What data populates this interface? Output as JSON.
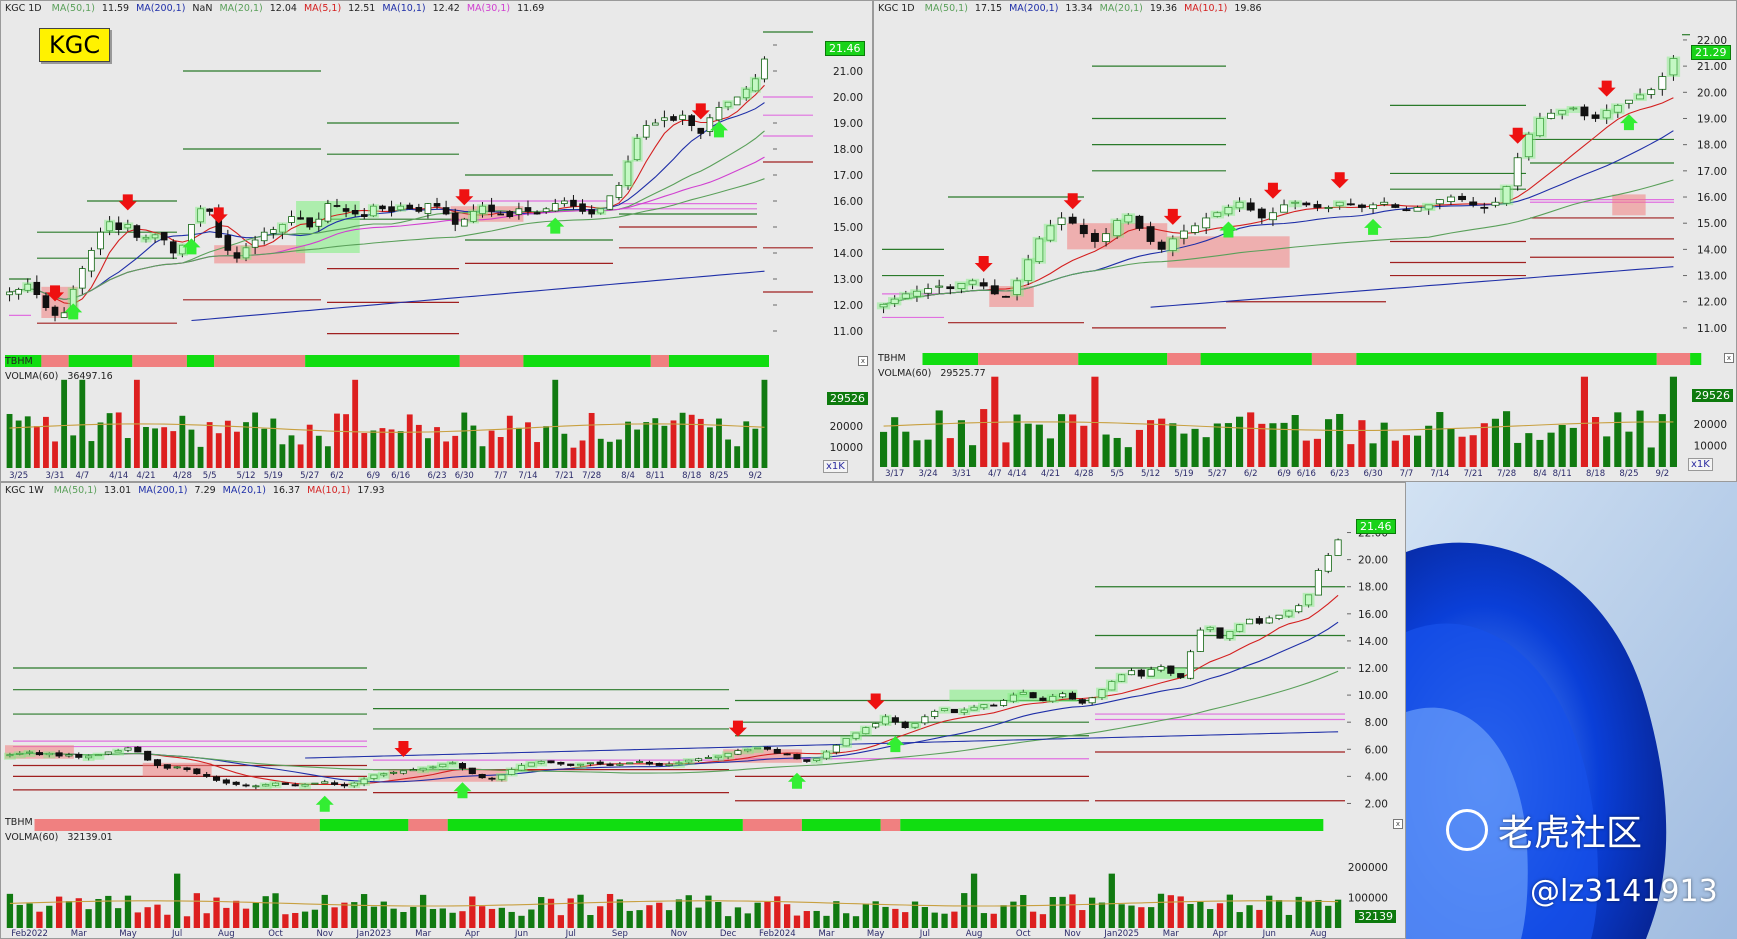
{
  "panels": {
    "top_left": {
      "symbol": "KGC 1D",
      "label_badge": "KGC",
      "ma": [
        {
          "label": "MA(50,1)",
          "value": "11.59",
          "color": "#5aa05a"
        },
        {
          "label": "MA(200,1)",
          "value": "NaN",
          "color": "#1f2fa8"
        },
        {
          "label": "MA(20,1)",
          "value": "12.04",
          "color": "#5aa05a"
        },
        {
          "label": "MA(5,1)",
          "value": "12.51",
          "color": "#d42020"
        },
        {
          "label": "MA(10,1)",
          "value": "12.42",
          "color": "#1f2fa8"
        },
        {
          "label": "MA(30,1)",
          "value": "11.69",
          "color": "#d040d0"
        }
      ],
      "price_label": "21.46",
      "tbhm": "TBHM",
      "volma": "VOLMA(60)",
      "volma_value": "36497.16",
      "vol_badge": "29526",
      "x1k": "x1K"
    },
    "top_right": {
      "symbol": "KGC 1D",
      "ma": [
        {
          "label": "MA(50,1)",
          "value": "17.15",
          "color": "#5aa05a"
        },
        {
          "label": "MA(200,1)",
          "value": "13.34",
          "color": "#1f2fa8"
        },
        {
          "label": "MA(20,1)",
          "value": "19.36",
          "color": "#5aa05a"
        },
        {
          "label": "MA(10,1)",
          "value": "19.86",
          "color": "#d42020"
        }
      ],
      "price_label": "21.29",
      "tbhm": "TBHM",
      "volma": "VOLMA(60)",
      "volma_value": "29525.77",
      "vol_badge": "29526",
      "x1k": "x1K"
    },
    "bottom": {
      "symbol": "KGC 1W",
      "ma": [
        {
          "label": "MA(50,1)",
          "value": "13.01",
          "color": "#5aa05a"
        },
        {
          "label": "MA(200,1)",
          "value": "7.29",
          "color": "#1f2fa8"
        },
        {
          "label": "MA(20,1)",
          "value": "16.37",
          "color": "#1f2fa8"
        },
        {
          "label": "MA(10,1)",
          "value": "17.93",
          "color": "#d42020"
        }
      ],
      "price_label": "21.46",
      "tbhm": "TBHM",
      "volma": "VOLMA(60)",
      "volma_value": "32139.01",
      "vol_badge": "32139"
    }
  },
  "watermark": {
    "brand": "老虎社区",
    "handle": "@lz3141913"
  },
  "colors": {
    "up": "#19c119",
    "down": "#e02020",
    "background": "#e9e9e9",
    "tbhm_green": "#11dd11",
    "tbhm_red": "#f08080"
  },
  "chart_data": [
    {
      "id": "top_left",
      "type": "candlestick",
      "timeframe": "1D",
      "ylim": [
        10.5,
        23.0
      ],
      "yticks": [
        11,
        12,
        13,
        14,
        15,
        16,
        17,
        18,
        19,
        20,
        21,
        22
      ],
      "ytick_labels": [
        "11.00",
        "12.00",
        "13.00",
        "14.00",
        "15.00",
        "16.00",
        "17.00",
        "18.00",
        "19.00",
        "20.00",
        "21.00",
        "22.00"
      ],
      "xtick_labels": [
        "3/25",
        "3/31",
        "4/7",
        "4/14",
        "4/21",
        "4/28",
        "5/5",
        "5/12",
        "5/19",
        "5/27",
        "6/2",
        "6/9",
        "6/16",
        "6/23",
        "6/30",
        "7/7",
        "7/14",
        "7/21",
        "7/28",
        "8/4",
        "8/11",
        "8/18",
        "8/25",
        "9/2"
      ],
      "close": [
        12.5,
        12.6,
        12.8,
        12.4,
        11.9,
        11.6,
        11.7,
        12.6,
        13.4,
        14.1,
        14.8,
        15.2,
        14.9,
        15.1,
        14.6,
        14.6,
        14.7,
        14.5,
        14.0,
        14.3,
        15.1,
        15.7,
        15.6,
        14.6,
        14.1,
        13.8,
        14.2,
        14.5,
        14.8,
        14.9,
        15.1,
        15.4,
        15.3,
        15.0,
        15.3,
        15.9,
        15.8,
        15.6,
        15.5,
        15.4,
        15.8,
        15.7,
        15.6,
        15.8,
        15.7,
        15.6,
        15.9,
        15.8,
        15.5,
        15.1,
        15.3,
        15.6,
        15.8,
        15.6,
        15.5,
        15.4,
        15.7,
        15.6,
        15.5,
        15.7,
        15.9,
        16.0,
        15.8,
        15.6,
        15.5,
        15.7,
        16.2,
        16.6,
        17.5,
        18.4,
        18.9,
        19.0,
        19.2,
        19.1,
        19.3,
        18.9,
        18.6,
        19.2,
        19.6,
        19.8,
        20.0,
        20.3,
        20.7,
        21.46
      ],
      "ma_series": [
        "MA(5,1)",
        "MA(10,1)",
        "MA(20,1)",
        "MA(30,1)",
        "MA(50,1)",
        "MA(200,1)"
      ],
      "volume_ylim": [
        0,
        40000
      ],
      "volume_yticks": [
        "10000",
        "20000"
      ]
    },
    {
      "id": "top_right",
      "type": "candlestick",
      "timeframe": "1D",
      "ylim": [
        10.5,
        22.8
      ],
      "yticks": [
        11,
        12,
        13,
        14,
        15,
        16,
        17,
        18,
        19,
        20,
        21,
        22
      ],
      "ytick_labels": [
        "11.00",
        "12.00",
        "13.00",
        "14.00",
        "15.00",
        "16.00",
        "17.00",
        "18.00",
        "19.00",
        "20.00",
        "21.00",
        "22.00"
      ],
      "xtick_labels": [
        "3/17",
        "3/24",
        "3/31",
        "4/7",
        "4/14",
        "4/21",
        "4/28",
        "5/5",
        "5/12",
        "5/19",
        "5/27",
        "6/2",
        "6/9",
        "6/16",
        "6/23",
        "6/30",
        "7/7",
        "7/14",
        "7/21",
        "7/28",
        "8/4",
        "8/11",
        "8/18",
        "8/25",
        "9/2"
      ],
      "close": [
        11.9,
        12.1,
        12.3,
        12.4,
        12.5,
        12.6,
        12.5,
        12.7,
        12.8,
        12.6,
        12.3,
        12.2,
        12.8,
        13.6,
        14.4,
        14.9,
        15.2,
        15.0,
        14.6,
        14.3,
        14.6,
        15.1,
        15.3,
        14.8,
        14.3,
        14.0,
        14.4,
        14.7,
        14.9,
        15.2,
        15.4,
        15.6,
        15.8,
        15.5,
        15.2,
        15.4,
        15.7,
        15.8,
        15.7,
        15.6,
        15.6,
        15.8,
        15.7,
        15.6,
        15.7,
        15.8,
        15.6,
        15.5,
        15.6,
        15.7,
        15.9,
        16.0,
        15.9,
        15.7,
        15.6,
        15.8,
        16.4,
        17.5,
        18.4,
        19.0,
        19.2,
        19.3,
        19.4,
        19.1,
        19.0,
        19.3,
        19.5,
        19.7,
        19.9,
        20.1,
        20.6,
        21.29
      ],
      "ma_series": [
        "MA(10,1)",
        "MA(20,1)",
        "MA(50,1)",
        "MA(200,1)"
      ],
      "volume_ylim": [
        0,
        40000
      ],
      "volume_yticks": [
        "10000",
        "20000"
      ]
    },
    {
      "id": "bottom",
      "type": "candlestick",
      "timeframe": "1W",
      "ylim": [
        1.0,
        23.0
      ],
      "yticks": [
        2,
        4,
        6,
        8,
        10,
        12,
        14,
        16,
        18,
        20,
        22
      ],
      "ytick_labels": [
        "2.00",
        "4.00",
        "6.00",
        "8.00",
        "10.00",
        "12.00",
        "14.00",
        "16.00",
        "18.00",
        "20.00",
        "22.00"
      ],
      "xtick_labels": [
        "Feb2022",
        "Mar",
        "May",
        "Jul",
        "Aug",
        "Oct",
        "Nov",
        "Jan2023",
        "Mar",
        "Apr",
        "Jun",
        "Jul",
        "Sep",
        "Nov",
        "Dec",
        "Feb2024",
        "Mar",
        "May",
        "Jul",
        "Aug",
        "Oct",
        "Nov",
        "Jan2025",
        "Mar",
        "Apr",
        "Jun",
        "Aug"
      ],
      "close": [
        5.6,
        5.7,
        5.8,
        5.6,
        5.7,
        5.5,
        5.6,
        5.4,
        5.5,
        5.6,
        5.8,
        5.9,
        6.1,
        5.8,
        5.2,
        4.8,
        4.6,
        4.7,
        4.5,
        4.2,
        4.0,
        3.7,
        3.5,
        3.4,
        3.3,
        3.3,
        3.4,
        3.5,
        3.4,
        3.3,
        3.4,
        3.5,
        3.6,
        3.4,
        3.3,
        3.5,
        3.8,
        4.1,
        4.2,
        4.3,
        4.4,
        4.5,
        4.6,
        4.7,
        4.9,
        5.0,
        4.6,
        4.2,
        3.9,
        3.8,
        4.1,
        4.5,
        4.8,
        5.0,
        5.1,
        5.0,
        4.9,
        4.8,
        4.9,
        5.0,
        4.9,
        4.8,
        4.9,
        5.0,
        5.1,
        4.9,
        4.8,
        4.9,
        5.0,
        5.2,
        5.3,
        5.4,
        5.5,
        5.7,
        5.9,
        6.0,
        6.1,
        6.0,
        5.7,
        5.6,
        5.3,
        5.1,
        5.3,
        5.8,
        6.3,
        6.8,
        7.2,
        7.6,
        7.9,
        8.4,
        8.0,
        7.6,
        7.9,
        8.4,
        8.8,
        9.0,
        8.7,
        8.9,
        9.1,
        9.3,
        9.2,
        9.6,
        10.0,
        10.2,
        9.8,
        9.6,
        9.9,
        10.1,
        9.7,
        9.4,
        9.8,
        10.4,
        11.0,
        11.5,
        11.8,
        11.4,
        11.9,
        12.1,
        11.6,
        11.3,
        13.2,
        14.8,
        15.0,
        14.2,
        14.7,
        15.2,
        15.6,
        15.3,
        15.7,
        15.9,
        16.2,
        16.6,
        17.4,
        19.2,
        20.3,
        21.46
      ],
      "ma_series": [
        "MA(10,1)",
        "MA(20,1)",
        "MA(50,1)",
        "MA(200,1)"
      ],
      "volume_ylim": [
        0,
        220000
      ],
      "volume_yticks": [
        "100000",
        "200000"
      ]
    }
  ]
}
